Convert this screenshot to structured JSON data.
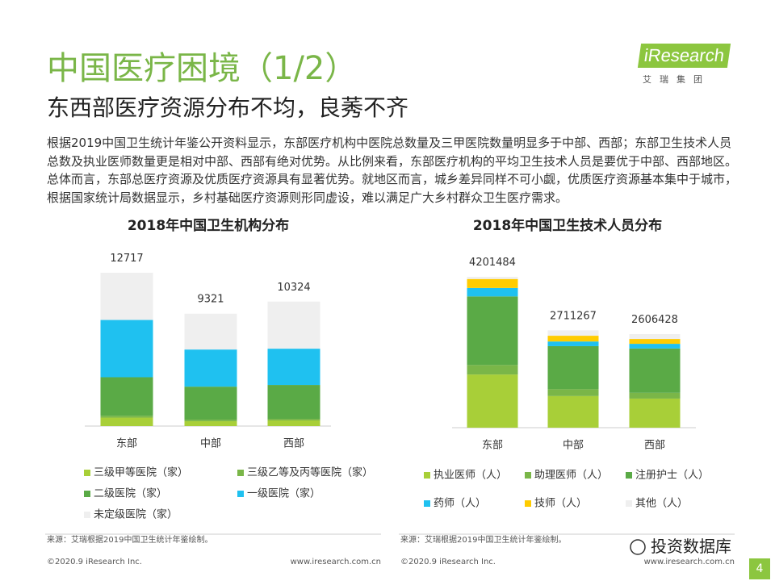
{
  "header": {
    "title": "中国医疗困境（1/2）",
    "subtitle": "东西部医疗资源分布不均，良莠不齐",
    "paragraph": "根据2019中国卫生统计年鉴公开资料显示，东部医疗机构中医院总数量及三甲医院数量明显多于中部、西部；东部卫生技术人员总数及执业医师数量更是相对中部、西部有绝对优势。从比例来看，东部医疗机构的平均卫生技术人员是要优于中部、西部地区。总体而言，东部总医疗资源及优质医疗资源具有显著优势。就地区而言，城乡差异同样不可小觑，优质医疗资源基本集中于城市，根据国家统计局数据显示，乡村基础医疗资源则形同虚设，难以满足广大乡村群众卫生医疗需求。",
    "logo": "iResearch",
    "logo_sub": "艾瑞集团"
  },
  "chart_data": [
    {
      "type": "stacked-bar",
      "title": "2018年中国卫生机构分布",
      "categories": [
        "东部",
        "中部",
        "西部"
      ],
      "totals": [
        12717,
        9321,
        10324
      ],
      "series": [
        {
          "name": "三级甲等医院（家）",
          "color": "#a8cf38",
          "values": [
            700,
            400,
            470
          ]
        },
        {
          "name": "三级乙等及丙等医院（家）",
          "color": "#7ab648",
          "values": [
            150,
            130,
            130
          ]
        },
        {
          "name": "二级医院（家）",
          "color": "#5aaa46",
          "values": [
            3200,
            2740,
            2810
          ]
        },
        {
          "name": "一级医院（家）",
          "color": "#1fc1f0",
          "values": [
            4750,
            3080,
            3010
          ]
        },
        {
          "name": "未定级医院（家）",
          "color": "#efefef",
          "values": [
            3917,
            2971,
            3904
          ]
        }
      ],
      "source": "来源：艾瑞根据2019中国卫生统计年鉴绘制。"
    },
    {
      "type": "stacked-bar",
      "title": "2018年中国卫生技术人员分布",
      "categories": [
        "东部",
        "中部",
        "西部"
      ],
      "totals": [
        4201484,
        2711267,
        2606428
      ],
      "series": [
        {
          "name": "执业医师（人）",
          "color": "#a8cf38",
          "values": [
            1480000,
            880000,
            810000
          ]
        },
        {
          "name": "助理医师（人）",
          "color": "#7ab648",
          "values": [
            265000,
            190000,
            160000
          ]
        },
        {
          "name": "注册护士（人）",
          "color": "#5aaa46",
          "values": [
            1910000,
            1200000,
            1235000
          ]
        },
        {
          "name": "药师（人）",
          "color": "#1fc1f0",
          "values": [
            235000,
            130000,
            130000
          ]
        },
        {
          "name": "技师（人）",
          "color": "#ffcc00",
          "values": [
            250000,
            160000,
            135000
          ]
        },
        {
          "name": "其他（人）",
          "color": "#efefef",
          "values": [
            61484,
            151267,
            136428
          ]
        }
      ],
      "source": "来源：艾瑞根据2019中国卫生统计年鉴绘制。"
    }
  ],
  "footer": {
    "copyright_left": "©2020.9 iResearch Inc.",
    "url_left": "www.iresearch.com.cn",
    "copyright_right": "©2020.9 iResearch Inc.",
    "url_right": "www.iresearch.com.cn",
    "watermark": "投资数据库",
    "page": "4"
  }
}
